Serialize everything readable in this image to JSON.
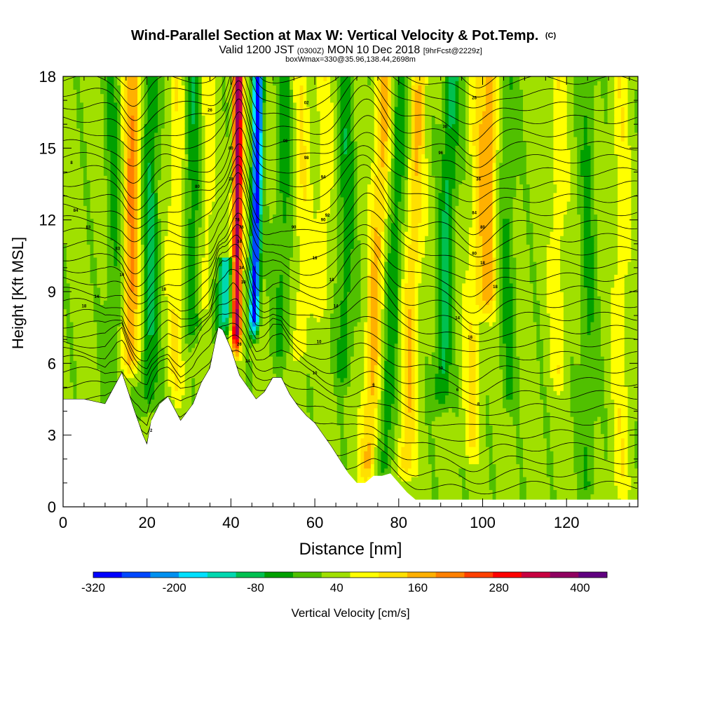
{
  "chart_data": {
    "type": "heatmap",
    "title": "Wind-Parallel Section at Max W: Vertical Velocity & Pot.Temp.",
    "title_mark": "(C)",
    "subtitle_parts": [
      "Valid 1200 JST ",
      "(0300Z)",
      " MON 10 Dec 2018 ",
      "[9hrFcst@2229z]"
    ],
    "subtitle2": "boxWmax=330@35.96,138.44,2698m",
    "xlabel": "Distance [nm]",
    "ylabel": "Height [Kft MSL]",
    "xlim": [
      0,
      137
    ],
    "ylim": [
      0,
      18
    ],
    "x_ticks": [
      0,
      20,
      40,
      60,
      80,
      100,
      120
    ],
    "y_ticks": [
      0,
      3,
      6,
      9,
      12,
      15,
      18
    ],
    "grid": false,
    "colorbar": {
      "label": "Vertical Velocity [cm/s]",
      "bounds": [
        -320,
        440
      ],
      "step": 40,
      "tick_values": [
        -320,
        -200,
        -80,
        40,
        160,
        280,
        400
      ],
      "colors": [
        "#0000ff",
        "#0048ff",
        "#0090f0",
        "#00e0ff",
        "#00d8b0",
        "#00c050",
        "#00a000",
        "#50c000",
        "#a0e000",
        "#ffff00",
        "#ffe000",
        "#ffb000",
        "#ff8000",
        "#ff4000",
        "#ff0000",
        "#c80040",
        "#900060",
        "#600080"
      ]
    },
    "terrain": {
      "x": [
        0,
        5,
        10,
        14,
        17,
        19,
        20,
        21,
        23,
        25,
        28,
        31,
        33,
        35,
        37,
        38,
        40,
        42,
        44,
        46,
        48,
        50,
        52,
        54,
        56,
        58,
        60,
        64,
        68,
        70,
        72,
        74,
        76,
        78,
        80,
        82,
        84,
        90,
        100,
        110,
        120,
        130,
        137
      ],
      "height": [
        4.5,
        4.5,
        4.3,
        5.6,
        4.0,
        3.0,
        2.6,
        3.6,
        4.3,
        4.6,
        3.6,
        4.3,
        5.2,
        5.8,
        7.5,
        7.4,
        6.6,
        5.5,
        5.0,
        4.5,
        4.8,
        5.4,
        5.4,
        4.7,
        4.2,
        3.8,
        3.5,
        2.5,
        1.4,
        1.0,
        1.0,
        1.3,
        1.3,
        1.4,
        1.0,
        0.6,
        0.3,
        0.3,
        0.3,
        0.3,
        0.3,
        0.3,
        0.3
      ]
    },
    "velocity_features": [
      {
        "x": 41.3,
        "z_bottom": 6.5,
        "z_top": 18,
        "peak": 330,
        "lean": 0.04
      },
      {
        "x": 45.5,
        "z_bottom": 7.2,
        "z_top": 18,
        "peak": -330,
        "lean": 0.1
      },
      {
        "x": 38.5,
        "z_bottom": 7.2,
        "z_top": 10.5,
        "peak": -170,
        "lean": 0.1
      },
      {
        "x": 16.0,
        "z_bottom": 5.5,
        "z_top": 18,
        "peak": 150,
        "lean": 0.05
      },
      {
        "x": 20.5,
        "z_bottom": 4.0,
        "z_top": 18,
        "peak": -100,
        "lean": 0.05
      },
      {
        "x": 12.0,
        "z_bottom": 4.5,
        "z_top": 18,
        "peak": -60,
        "lean": 0.0
      },
      {
        "x": 27.0,
        "z_bottom": 4.5,
        "z_top": 18,
        "peak": 60,
        "lean": 0.0
      },
      {
        "x": 31.0,
        "z_bottom": 7.0,
        "z_top": 18,
        "peak": -90,
        "lean": 0.0
      },
      {
        "x": 34.0,
        "z_bottom": 8.0,
        "z_top": 18,
        "peak": 50,
        "lean": 0.0
      },
      {
        "x": 52.0,
        "z_bottom": 6.0,
        "z_top": 18,
        "peak": -70,
        "lean": 0.05
      },
      {
        "x": 57.0,
        "z_bottom": 6.0,
        "z_top": 18,
        "peak": 55,
        "lean": 0.0
      },
      {
        "x": 62.0,
        "z_bottom": 8.0,
        "z_top": 18,
        "peak": 50,
        "lean": 0.0
      },
      {
        "x": 67.0,
        "z_bottom": 5.0,
        "z_top": 18,
        "peak": -80,
        "lean": 0.06
      },
      {
        "x": 72.5,
        "z_bottom": 1.0,
        "z_top": 18,
        "peak": 120,
        "lean": 0.25
      },
      {
        "x": 76.5,
        "z_bottom": 1.0,
        "z_top": 18,
        "peak": -80,
        "lean": 0.25
      },
      {
        "x": 81.5,
        "z_bottom": 1.0,
        "z_top": 18,
        "peak": 100,
        "lean": 0.2
      },
      {
        "x": 90.0,
        "z_bottom": 4.0,
        "z_top": 18,
        "peak": -110,
        "lean": 0.2
      },
      {
        "x": 97.0,
        "z_bottom": 2.0,
        "z_top": 18,
        "peak": 70,
        "lean": 0.15
      },
      {
        "x": 101.0,
        "z_bottom": 8.0,
        "z_top": 18,
        "peak": 120,
        "lean": 0.1
      },
      {
        "x": 106.0,
        "z_bottom": 4.0,
        "z_top": 18,
        "peak": -60,
        "lean": 0.0
      },
      {
        "x": 118.0,
        "z_bottom": 5.0,
        "z_top": 18,
        "peak": 50,
        "lean": 0.0
      },
      {
        "x": 125.0,
        "z_bottom": 0.3,
        "z_top": 18,
        "peak": -60,
        "lean": 0.0
      },
      {
        "x": 133.0,
        "z_bottom": 0.3,
        "z_top": 18,
        "peak": 50,
        "lean": 0.0
      }
    ],
    "theta_contours": {
      "interval_kft": 0.55,
      "count": 33,
      "perturbations": [
        {
          "x": 17,
          "amp": -1.0,
          "width": 4
        },
        {
          "x": 42,
          "amp": 2.2,
          "width": 3
        },
        {
          "x": 72,
          "amp": 1.8,
          "width": 6
        },
        {
          "x": 98,
          "amp": -0.8,
          "width": 5
        }
      ],
      "labels": [
        {
          "x": 2,
          "z": 14.4,
          "text": "8"
        },
        {
          "x": 3,
          "z": 12.4,
          "text": "84"
        },
        {
          "x": 6,
          "z": 11.7,
          "text": "83"
        },
        {
          "x": 5,
          "z": 8.4,
          "text": "18"
        },
        {
          "x": 8,
          "z": 8.8,
          "text": "14"
        },
        {
          "x": 13,
          "z": 10.8,
          "text": "83"
        },
        {
          "x": 14,
          "z": 9.7,
          "text": "14"
        },
        {
          "x": 24,
          "z": 9.1,
          "text": "18"
        },
        {
          "x": 21,
          "z": 3.2,
          "text": "2"
        },
        {
          "x": 32,
          "z": 13.4,
          "text": "80"
        },
        {
          "x": 35,
          "z": 16.6,
          "text": "26"
        },
        {
          "x": 40,
          "z": 15.0,
          "text": "80"
        },
        {
          "x": 40,
          "z": 13.7,
          "text": "38"
        },
        {
          "x": 41.5,
          "z": 12.0,
          "text": "78"
        },
        {
          "x": 42.5,
          "z": 11.7,
          "text": "76"
        },
        {
          "x": 42,
          "z": 11.1,
          "text": "34"
        },
        {
          "x": 42.5,
          "z": 10.0,
          "text": "34"
        },
        {
          "x": 43,
          "z": 9.4,
          "text": "30"
        },
        {
          "x": 42,
          "z": 6.8,
          "text": "26"
        },
        {
          "x": 44,
          "z": 6.1,
          "text": "24"
        },
        {
          "x": 53,
          "z": 15.3,
          "text": "06"
        },
        {
          "x": 58,
          "z": 16.9,
          "text": "02"
        },
        {
          "x": 58,
          "z": 14.6,
          "text": "98"
        },
        {
          "x": 62,
          "z": 13.8,
          "text": "94"
        },
        {
          "x": 63,
          "z": 12.2,
          "text": "92"
        },
        {
          "x": 62,
          "z": 12.0,
          "text": "90"
        },
        {
          "x": 55,
          "z": 11.7,
          "text": "90"
        },
        {
          "x": 60,
          "z": 10.4,
          "text": "18"
        },
        {
          "x": 64,
          "z": 9.5,
          "text": "18"
        },
        {
          "x": 65,
          "z": 8.4,
          "text": "14"
        },
        {
          "x": 61,
          "z": 6.9,
          "text": "10"
        },
        {
          "x": 60,
          "z": 5.6,
          "text": "10"
        },
        {
          "x": 74,
          "z": 5.1,
          "text": "6"
        },
        {
          "x": 98,
          "z": 17.1,
          "text": "26"
        },
        {
          "x": 91,
          "z": 15.9,
          "text": "30"
        },
        {
          "x": 90,
          "z": 14.8,
          "text": "96"
        },
        {
          "x": 99,
          "z": 13.7,
          "text": "36"
        },
        {
          "x": 98,
          "z": 12.3,
          "text": "84"
        },
        {
          "x": 100,
          "z": 11.7,
          "text": "80"
        },
        {
          "x": 98,
          "z": 10.6,
          "text": "80"
        },
        {
          "x": 100,
          "z": 10.2,
          "text": "18"
        },
        {
          "x": 103,
          "z": 9.2,
          "text": "18"
        },
        {
          "x": 94,
          "z": 7.9,
          "text": "14"
        },
        {
          "x": 97,
          "z": 7.1,
          "text": "18"
        },
        {
          "x": 90,
          "z": 5.8,
          "text": "10"
        },
        {
          "x": 94,
          "z": 4.9,
          "text": "6"
        },
        {
          "x": 99,
          "z": 4.3,
          "text": "8"
        }
      ]
    }
  }
}
